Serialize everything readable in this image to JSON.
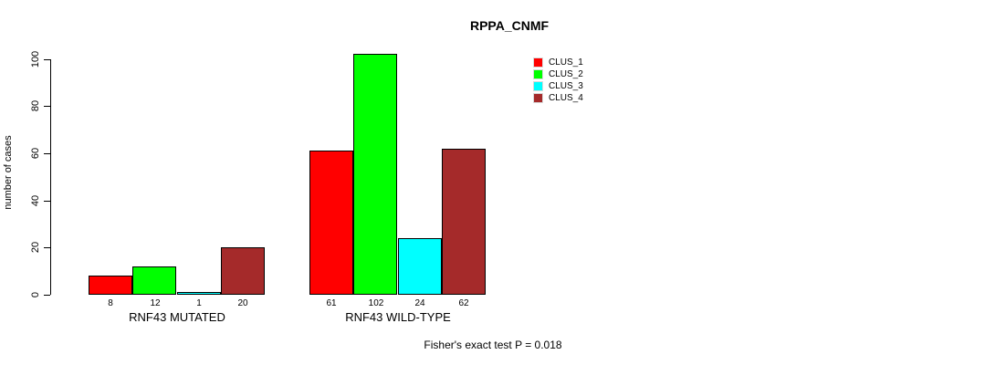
{
  "chart_data": {
    "type": "bar",
    "title": "RPPA_CNMF",
    "xlabel": "",
    "ylabel": "number of cases",
    "ylim": [
      0,
      100
    ],
    "yticks": [
      0,
      20,
      40,
      60,
      80,
      100
    ],
    "grid": false,
    "legend_position": "top-right",
    "groups": [
      "RNF43 MUTATED",
      "RNF43 WILD-TYPE"
    ],
    "series": [
      {
        "name": "CLUS_1",
        "color": "#ff0000",
        "values": [
          8,
          61
        ]
      },
      {
        "name": "CLUS_2",
        "color": "#00ff00",
        "values": [
          12,
          102
        ]
      },
      {
        "name": "CLUS_3",
        "color": "#00ffff",
        "values": [
          1,
          24
        ]
      },
      {
        "name": "CLUS_4",
        "color": "#a52a2a",
        "values": [
          20,
          62
        ]
      }
    ],
    "annotation": "Fisher's exact test P = 0.018",
    "colors": {
      "bar_border": "#000000",
      "axis": "#000000",
      "background": "#ffffff"
    }
  }
}
